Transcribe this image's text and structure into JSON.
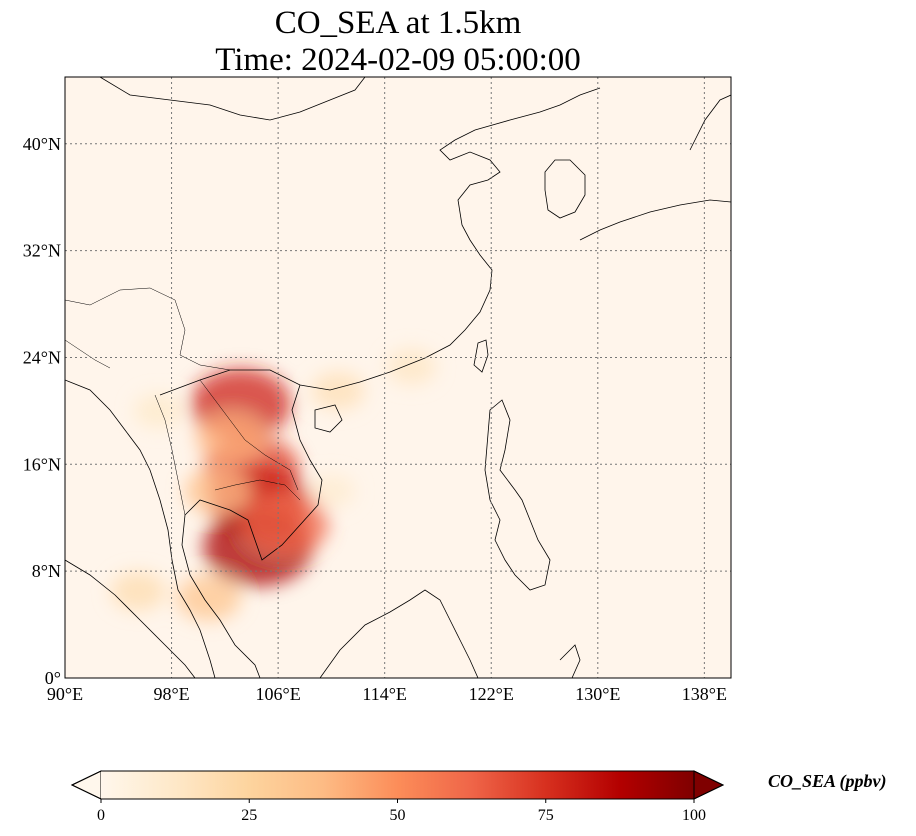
{
  "title": {
    "line1": "CO_SEA at 1.5km",
    "line2": "Time: 2024-02-09 05:00:00"
  },
  "map": {
    "projection": "PlateCarree",
    "lon_range": [
      90,
      140
    ],
    "lat_range": [
      0,
      45
    ],
    "gridlines": "dotted",
    "x_ticks": [
      {
        "value": 90,
        "label": "90°E"
      },
      {
        "value": 98,
        "label": "98°E"
      },
      {
        "value": 106,
        "label": "106°E"
      },
      {
        "value": 114,
        "label": "114°E"
      },
      {
        "value": 122,
        "label": "122°E"
      },
      {
        "value": 130,
        "label": "130°E"
      },
      {
        "value": 138,
        "label": "138°E"
      }
    ],
    "y_ticks": [
      {
        "value": 0,
        "label": "0°"
      },
      {
        "value": 8,
        "label": "8°N"
      },
      {
        "value": 16,
        "label": "16°N"
      },
      {
        "value": 24,
        "label": "24°N"
      },
      {
        "value": 32,
        "label": "32°N"
      },
      {
        "value": 40,
        "label": "40°N"
      }
    ],
    "background_color": "#fff5eb",
    "plumes": [
      {
        "lon": 103.2,
        "lat": 20.5,
        "value": 78
      },
      {
        "lon": 104.0,
        "lat": 15.6,
        "value": 72
      },
      {
        "lon": 104.6,
        "lat": 13.2,
        "value": 80
      },
      {
        "lon": 104.5,
        "lat": 9.8,
        "value": 90
      },
      {
        "lon": 106.5,
        "lat": 11.5,
        "value": 62
      },
      {
        "lon": 101.5,
        "lat": 14.0,
        "value": 35
      },
      {
        "lon": 102.5,
        "lat": 18.0,
        "value": 40
      },
      {
        "lon": 95.5,
        "lat": 6.5,
        "value": 20
      },
      {
        "lon": 100.8,
        "lat": 6.0,
        "value": 32
      },
      {
        "lon": 110.5,
        "lat": 21.5,
        "value": 18
      },
      {
        "lon": 116.0,
        "lat": 23.3,
        "value": 14
      },
      {
        "lon": 110.0,
        "lat": 14.0,
        "value": 10
      },
      {
        "lon": 97.0,
        "lat": 20.0,
        "value": 12
      }
    ]
  },
  "colorbar": {
    "colormap": "OrRd",
    "stops": [
      "#fff7ec",
      "#fee8c8",
      "#fdd49e",
      "#fdbb84",
      "#fc8d59",
      "#ef6548",
      "#d7301f",
      "#b30000",
      "#7f0000"
    ],
    "min": 0,
    "max": 100,
    "extend": "both",
    "ticks": [
      {
        "value": 0,
        "label": "0"
      },
      {
        "value": 25,
        "label": "25"
      },
      {
        "value": 50,
        "label": "50"
      },
      {
        "value": 75,
        "label": "75"
      },
      {
        "value": 100,
        "label": "100"
      }
    ],
    "label": "CO_SEA (ppbv)"
  }
}
